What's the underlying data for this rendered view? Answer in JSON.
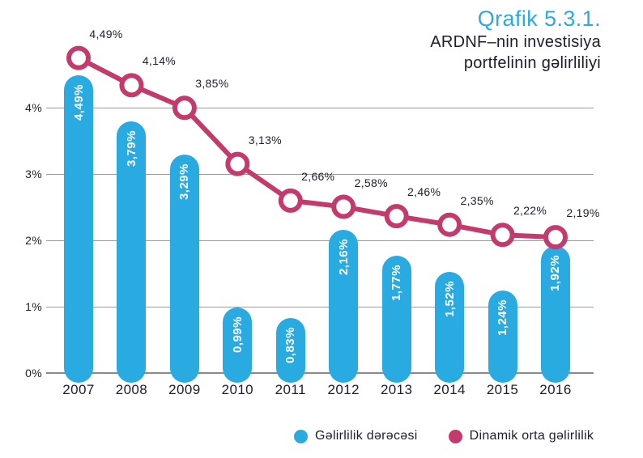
{
  "title": {
    "kicker": "Qrafik 5.3.1.",
    "subtitle_line1": "ARDNF–nin investisiya",
    "subtitle_line2": "portfelinin gəlirliliyi"
  },
  "legend": {
    "items": [
      {
        "label": "Gəlirlilik dərəcəsi",
        "color": "#29ABE2"
      },
      {
        "label": "Dinamik orta gəlirlilik",
        "color": "#C33B6C"
      }
    ]
  },
  "colors": {
    "accent_blue": "#29ABE2",
    "accent_pink": "#C33B6C",
    "text_dark": "#1D1D30",
    "grid_line": "#9B9B9B",
    "axis_line": "#8A8A8A",
    "background": "#FFFFFF"
  },
  "chart_data": {
    "type": "combo-bar-line",
    "categories": [
      "2007",
      "2008",
      "2009",
      "2010",
      "2011",
      "2012",
      "2013",
      "2014",
      "2015",
      "2016"
    ],
    "series": [
      {
        "name": "Gəlirlilik dərəcəsi",
        "type": "bar",
        "color": "#29ABE2",
        "values": [
          4.49,
          3.79,
          3.29,
          0.99,
          0.83,
          2.16,
          1.77,
          1.52,
          1.24,
          1.92
        ],
        "labels": [
          "4,49%",
          "3,79%",
          "3,29%",
          "0,99%",
          "0,83%",
          "2,16%",
          "1,77%",
          "1,52%",
          "1,24%",
          "1,92%"
        ]
      },
      {
        "name": "Dinamik orta gəlirlilik",
        "type": "line",
        "color": "#C33B6C",
        "values": [
          4.49,
          4.14,
          3.85,
          3.13,
          2.66,
          2.58,
          2.46,
          2.35,
          2.22,
          2.19
        ],
        "labels": [
          "4,49%",
          "4,14%",
          "3,85%",
          "3,13%",
          "2,66%",
          "2,58%",
          "2,46%",
          "2,35%",
          "2,22%",
          "2,19%"
        ]
      }
    ],
    "title": "Qrafik 5.3.1. ARDNF–nin investisiya portfelinin gəlirliliyi",
    "xlabel": "",
    "ylabel": "",
    "yticks": [
      "0%",
      "1%",
      "2%",
      "3%",
      "4%"
    ],
    "ylim": [
      0,
      4.6
    ],
    "grid": true,
    "legend_position": "bottom"
  }
}
